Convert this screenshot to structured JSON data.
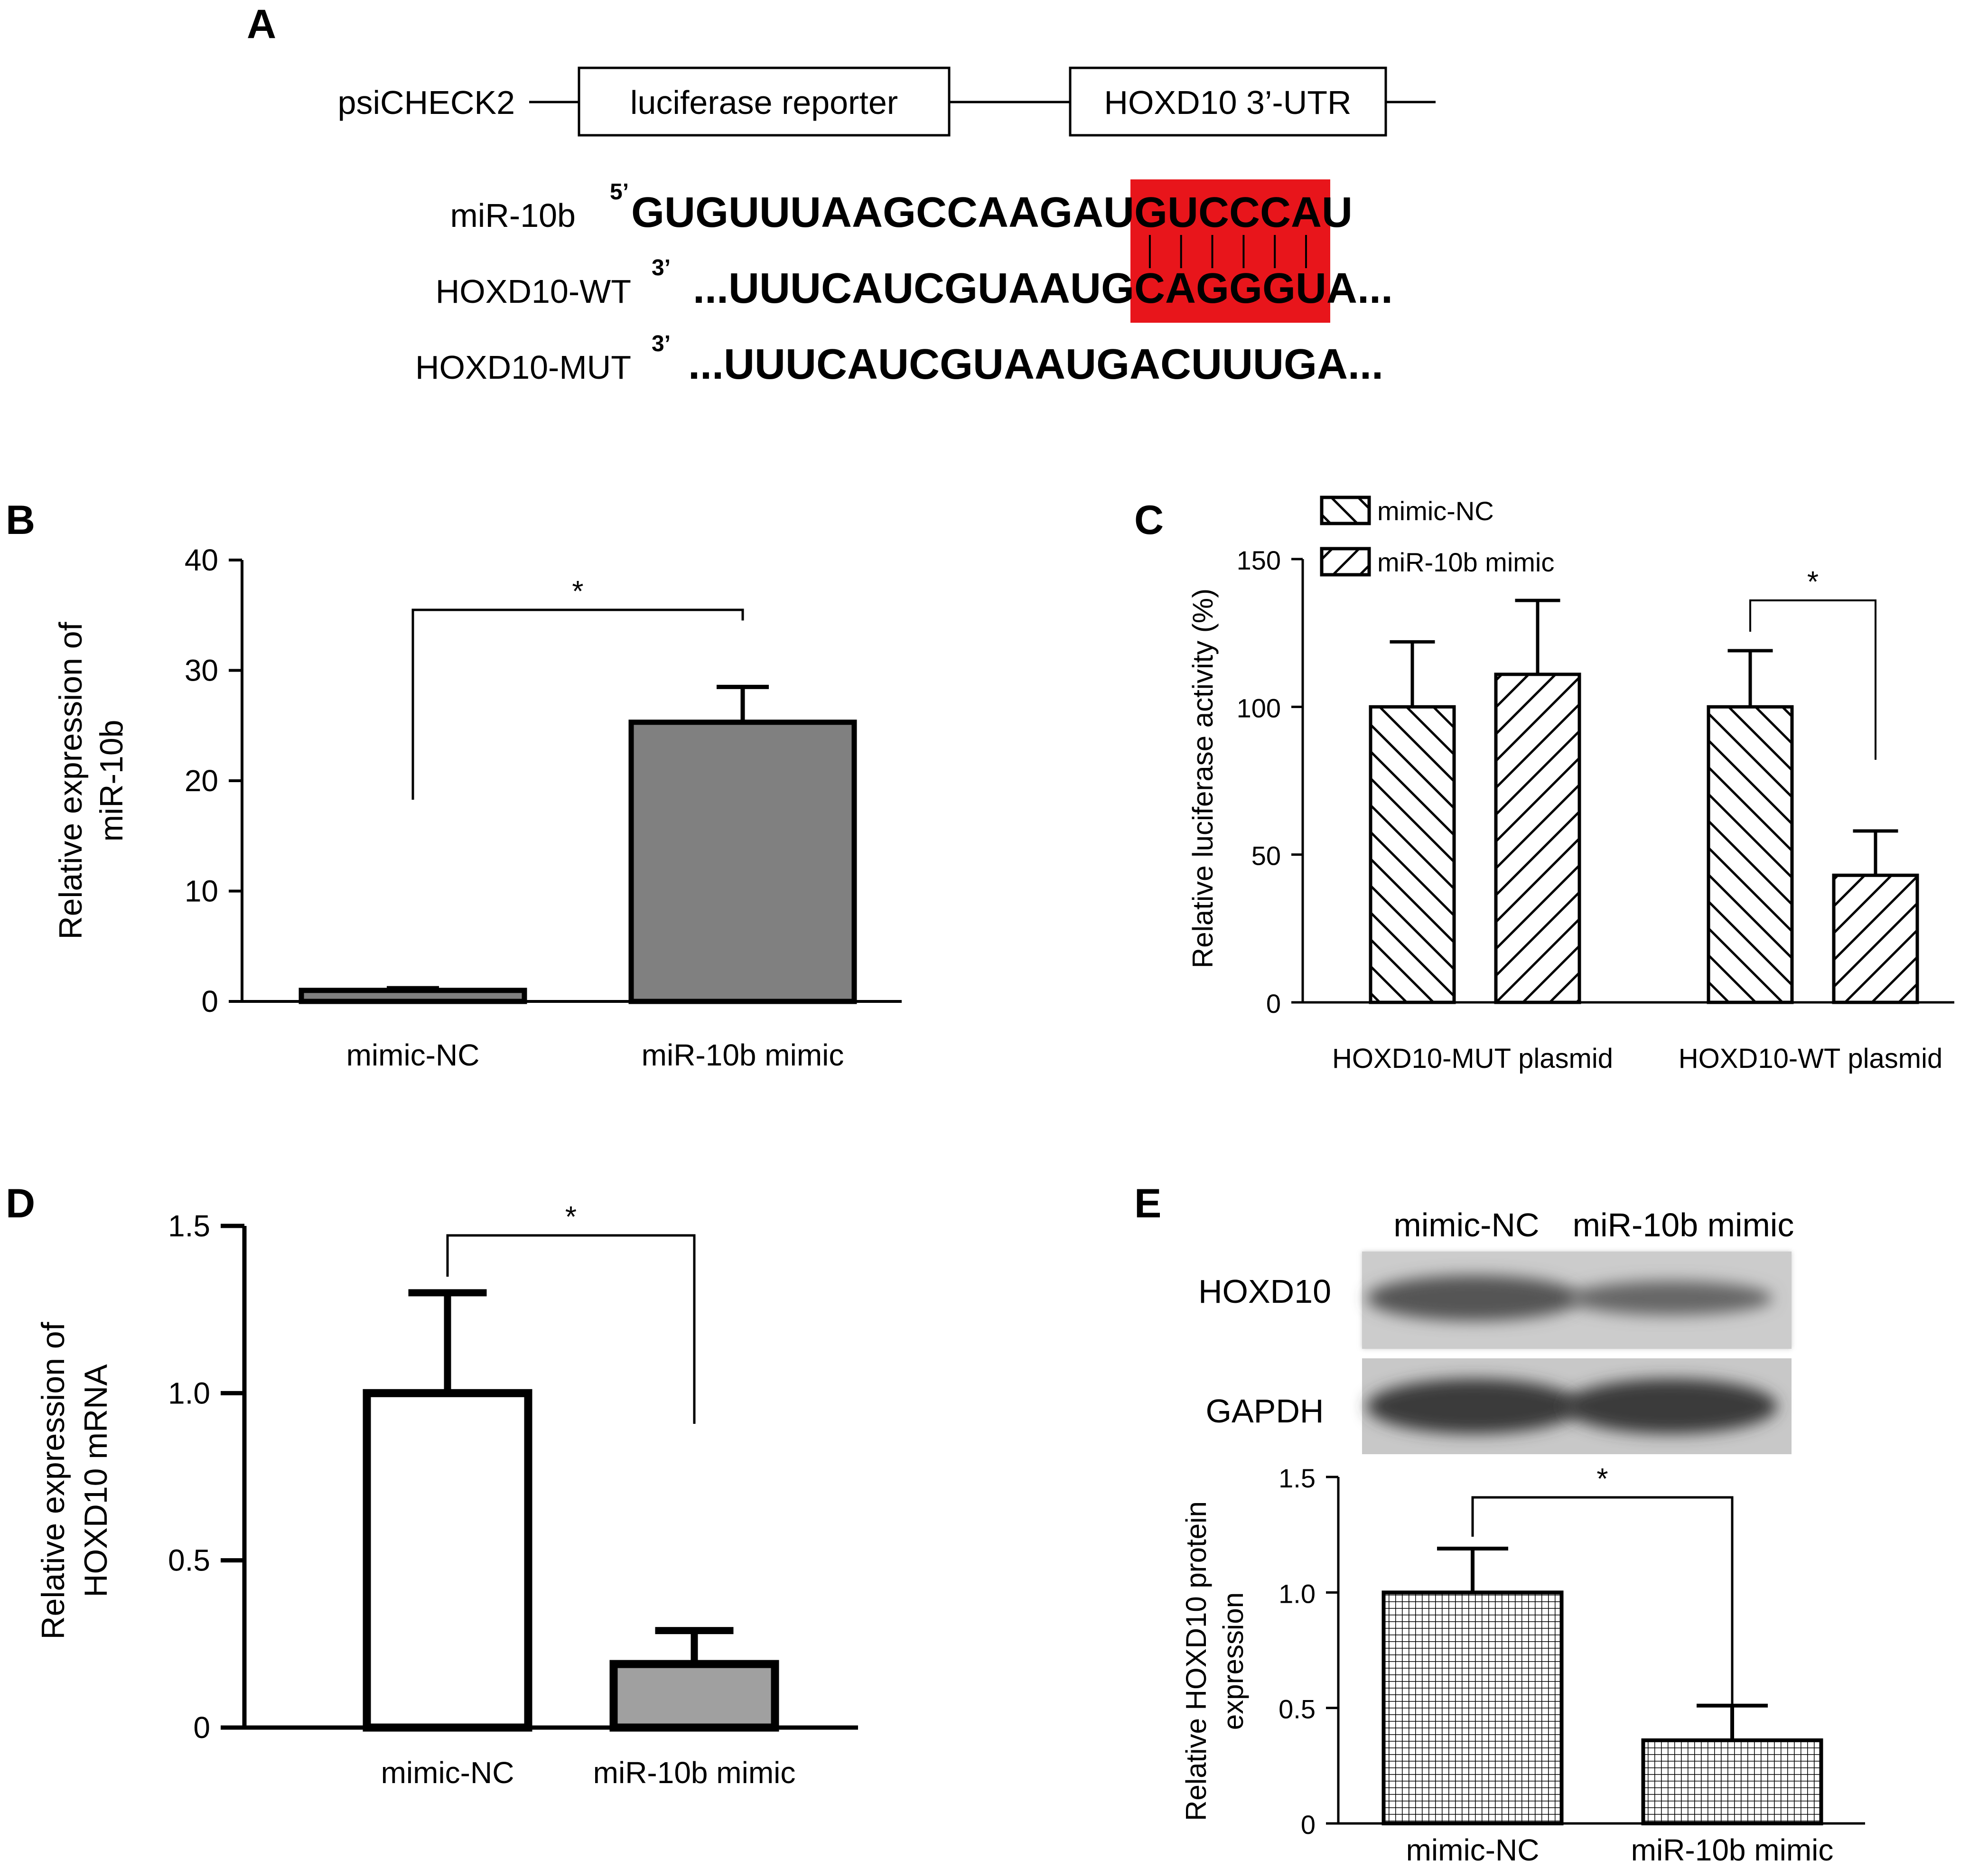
{
  "panel_a": {
    "letter": "A",
    "construct": {
      "vector": "psiCHECK2",
      "box1": "luciferase reporter",
      "box2": "HOXD10 3’-UTR"
    },
    "rows": [
      {
        "label": "miR-10b",
        "prime": "5’",
        "prefix": "",
        "seq_pre": "GUGUUUAAGCCAAGAU",
        "seq_hl": "GUCCCA",
        "seq_post": "U",
        "suffix": ""
      },
      {
        "label": "HOXD10-WT",
        "prime": "3’",
        "prefix": "...",
        "seq_pre": "UUUCAUCGUAAUG",
        "seq_hl": "CAGGGU",
        "seq_post": "A",
        "suffix": "..."
      },
      {
        "label": "HOXD10-MUT",
        "prime": "3’",
        "prefix": "...",
        "seq_pre": "UUUCAUCGUAAUGACUUUGA",
        "seq_hl": "",
        "seq_post": "",
        "suffix": "..."
      }
    ],
    "highlight_color": "#e8151b"
  },
  "chart_data": [
    {
      "panel": "B",
      "type": "bar",
      "categories": [
        "mimic-NC",
        "miR-10b mimic"
      ],
      "values": [
        1.0,
        25.3
      ],
      "errors": [
        0.2,
        3.2
      ],
      "ylim": [
        0,
        40
      ],
      "yticks": [
        "0",
        "10",
        "20",
        "30",
        "40"
      ],
      "ytick_values": [
        0,
        10,
        20,
        30,
        40
      ],
      "ylabel_lines": [
        "Relative expression of",
        "miR-10b"
      ],
      "xlabel": "",
      "significance": "*",
      "bar_fill": "#808080"
    },
    {
      "panel": "C",
      "type": "bar",
      "categories": [
        "HOXD10-MUT plasmid",
        "HOXD10-WT plasmid"
      ],
      "series": [
        {
          "name": "mimic-NC",
          "values": [
            100,
            100
          ],
          "errors": [
            22,
            19
          ],
          "pattern": "backslash"
        },
        {
          "name": "miR-10b mimic",
          "values": [
            111,
            43
          ],
          "errors": [
            25,
            15
          ],
          "pattern": "slash"
        }
      ],
      "ylim": [
        0,
        150
      ],
      "yticks": [
        "0",
        "50",
        "100",
        "150"
      ],
      "ytick_values": [
        0,
        50,
        100,
        150
      ],
      "ylabel": "Relative luciferase activity (%)",
      "xlabel": "",
      "legend_position": "top-left",
      "significance": "*"
    },
    {
      "panel": "D",
      "type": "bar",
      "categories": [
        "mimic-NC",
        "miR-10b mimic"
      ],
      "values": [
        1.0,
        0.19
      ],
      "errors": [
        0.3,
        0.1
      ],
      "ylim": [
        0,
        1.5
      ],
      "yticks": [
        "0",
        "0.5",
        "1.0",
        "1.5"
      ],
      "ytick_values": [
        0,
        0.5,
        1.0,
        1.5
      ],
      "ylabel_lines": [
        "Relative expression of",
        "HOXD10 mRNA"
      ],
      "xlabel": "",
      "significance": "*",
      "bar_fills": [
        "#ffffff",
        "#a0a0a0"
      ]
    },
    {
      "panel": "E",
      "type": "bar",
      "categories": [
        "mimic-NC",
        "miR-10b mimic"
      ],
      "values": [
        1.0,
        0.36
      ],
      "errors": [
        0.19,
        0.15
      ],
      "ylim": [
        0,
        1.5
      ],
      "yticks": [
        "0",
        "0.5",
        "1.0",
        "1.5"
      ],
      "ytick_values": [
        0,
        0.5,
        1.0,
        1.5
      ],
      "ylabel_lines": [
        "Relative HOXD10 protein",
        "expression"
      ],
      "xlabel": "",
      "significance": "*",
      "pattern": "grid"
    }
  ],
  "panel_letters": {
    "b": "B",
    "c": "C",
    "d": "D",
    "e": "E"
  },
  "blot": {
    "lanes": [
      "mimic-NC",
      "miR-10b mimic"
    ],
    "rows": [
      "HOXD10",
      "GAPDH"
    ]
  }
}
